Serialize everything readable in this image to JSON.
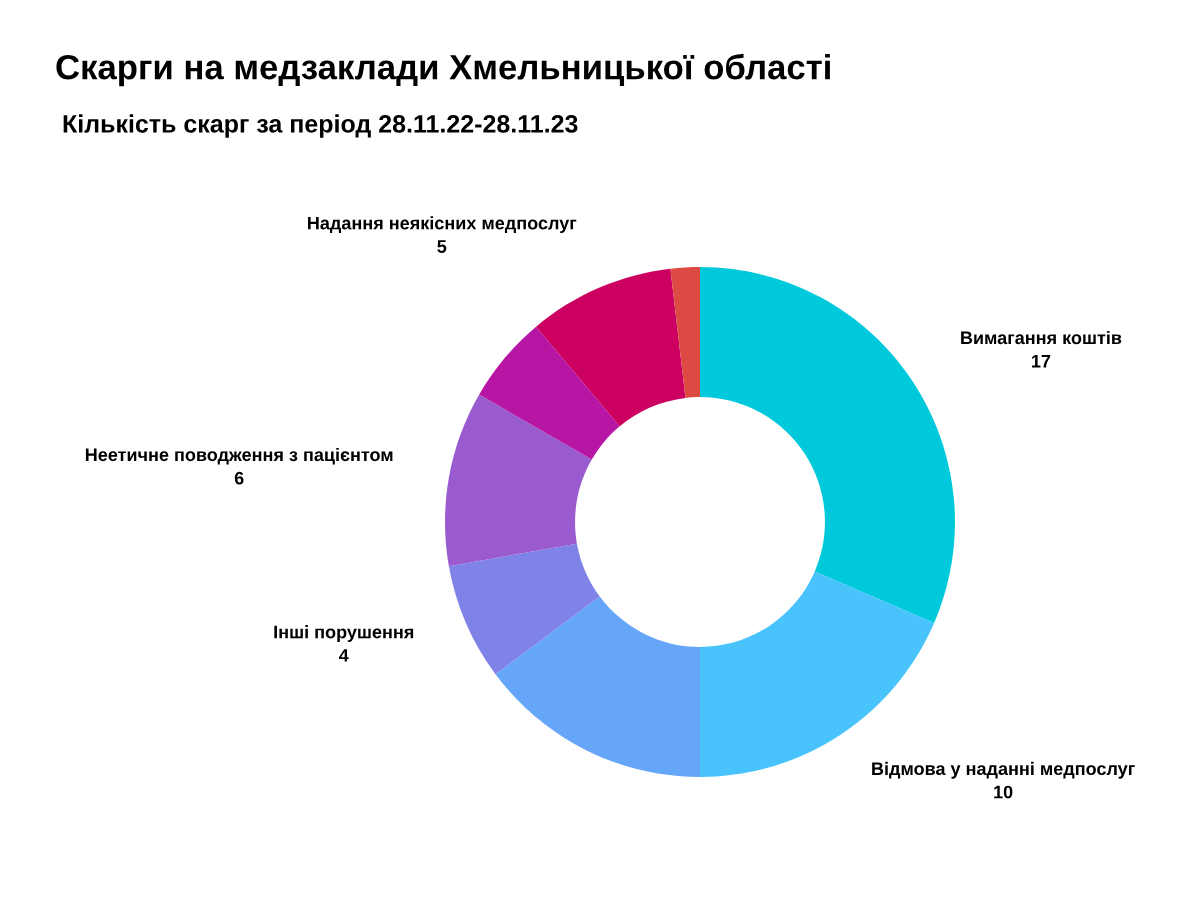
{
  "chart_data": {
    "type": "donut",
    "title": "Скарги на медзаклади Хмельницької області",
    "subtitle": "Кількість скарг за період 28.11.22-28.11.23",
    "categories": [
      "Вимагання коштів",
      "Відмова у наданні медпослуг",
      null,
      "Інші порушення",
      "Неетичне поводження з пацієнтом",
      null,
      "Надання неякісних медпослуг",
      null
    ],
    "values": [
      17,
      10,
      8,
      4,
      6,
      3,
      5,
      1
    ],
    "value_labels": [
      "17",
      "10",
      null,
      "4",
      "6",
      null,
      "5",
      null
    ],
    "colors": [
      "#00c9db",
      "#48c3fc",
      "#65a6f9",
      "#7f83e8",
      "#9a5bcf",
      "#b715a3",
      "#cc0060",
      "#dd4a44"
    ]
  }
}
